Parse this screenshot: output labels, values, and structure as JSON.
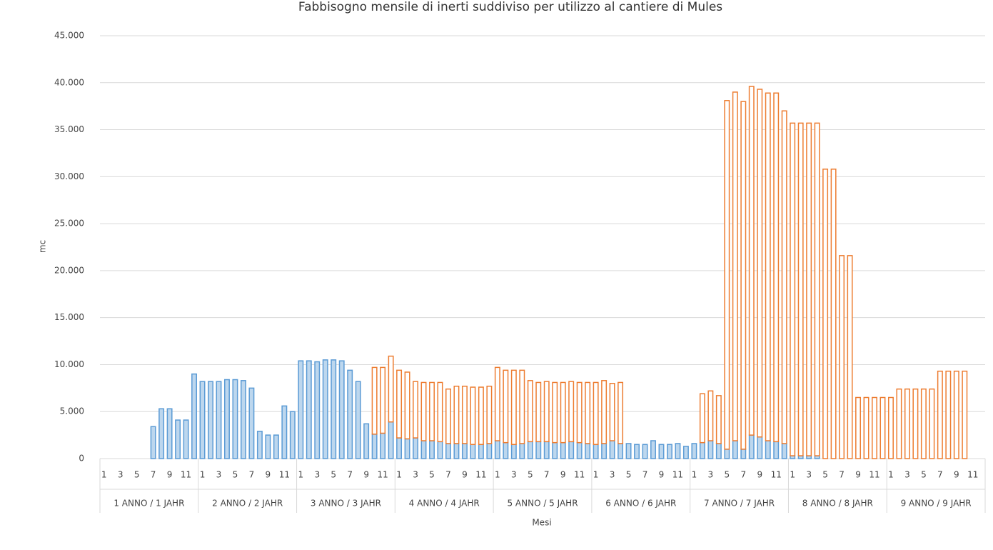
{
  "chart_data": {
    "type": "stacked_bar",
    "title": "Fabbisogno mensile di inerti suddiviso per utilizzo al cantiere di Mules",
    "ylabel": "mc",
    "xlabel": "Mesi",
    "categories": [
      "1",
      null,
      "3",
      null,
      "5",
      null,
      "7",
      null,
      "9",
      null,
      "11",
      null,
      "1",
      null,
      "3",
      null,
      "5",
      null,
      "7",
      null,
      "9",
      null,
      "11",
      null,
      "1",
      null,
      "3",
      null,
      "5",
      null,
      "7",
      null,
      "9",
      null,
      "11",
      null,
      "1",
      null,
      "3",
      null,
      "5",
      null,
      "7",
      null,
      "9",
      null,
      "11",
      null,
      "1",
      null,
      "3",
      null,
      "5",
      null,
      "7",
      null,
      "9",
      null,
      "11",
      null,
      "1",
      null,
      "3",
      null,
      "5",
      null,
      "7",
      null,
      "9",
      null,
      "11",
      null,
      "1",
      null,
      "3",
      null,
      "5",
      null,
      "7",
      null,
      "9",
      null,
      "11",
      null,
      "1",
      null,
      "3",
      null,
      "5",
      null,
      "7",
      null,
      "9",
      null,
      "11",
      null,
      "1",
      null,
      "3",
      null,
      "5",
      null,
      "7",
      null,
      "9",
      null,
      "11",
      null
    ],
    "groups": [
      "1 ANNO / 1 JAHR",
      "2 ANNO / 2 JAHR",
      "3 ANNO / 3 JAHR",
      "4 ANNO / 4 JAHR",
      "5 ANNO / 5 JAHR",
      "6 ANNO / 6 JAHR",
      "7 ANNO / 7 JAHR",
      "8 ANNO / 8 JAHR",
      "9 ANNO / 9 JAHR"
    ],
    "series": [
      {
        "color": "#5b9bd5",
        "fill": "#bdd7ee",
        "values": [
          0,
          0,
          0,
          0,
          0,
          0,
          3400,
          5300,
          5300,
          4100,
          4100,
          9000,
          8200,
          8200,
          8200,
          8400,
          8400,
          8300,
          7500,
          2900,
          2500,
          2500,
          5600,
          5000,
          10400,
          10400,
          10300,
          10500,
          10500,
          10400,
          9400,
          8200,
          3700,
          2600,
          2700,
          3900,
          2200,
          2100,
          2200,
          1900,
          1900,
          1800,
          1600,
          1600,
          1600,
          1500,
          1500,
          1600,
          1900,
          1700,
          1500,
          1600,
          1800,
          1800,
          1800,
          1700,
          1700,
          1800,
          1700,
          1600,
          1500,
          1600,
          1900,
          1600,
          1600,
          1500,
          1500,
          1900,
          1500,
          1500,
          1600,
          1300,
          1600,
          1700,
          1900,
          1600,
          1000,
          1900,
          1000,
          2500,
          2300,
          1900,
          1800,
          1600,
          300,
          300,
          300,
          300,
          0,
          0,
          0,
          0,
          0,
          0,
          0,
          0,
          0,
          0,
          0,
          0,
          0,
          0,
          0,
          0,
          0,
          0,
          0,
          0
        ]
      },
      {
        "color": "#ed7d31",
        "fill": "#ffffff",
        "values": [
          0,
          0,
          0,
          0,
          0,
          0,
          0,
          0,
          0,
          0,
          0,
          0,
          0,
          0,
          0,
          0,
          0,
          0,
          0,
          0,
          0,
          0,
          0,
          0,
          0,
          0,
          0,
          0,
          0,
          0,
          0,
          0,
          0,
          7100,
          7000,
          7000,
          7200,
          7100,
          6000,
          6200,
          6200,
          6300,
          5800,
          6100,
          6100,
          6100,
          6100,
          6100,
          7800,
          7700,
          7900,
          7800,
          6500,
          6300,
          6400,
          6400,
          6400,
          6400,
          6400,
          6500,
          6600,
          6700,
          6100,
          6500,
          0,
          0,
          0,
          0,
          0,
          0,
          0,
          0,
          0,
          5200,
          5300,
          5100,
          37100,
          37100,
          37000,
          37100,
          37000,
          37000,
          37100,
          35400,
          35400,
          35400,
          35400,
          35400,
          30800,
          30800,
          21600,
          21600,
          6500,
          6500,
          6500,
          6500,
          6500,
          7400,
          7400,
          7400,
          7400,
          7400,
          9300,
          9300,
          9300,
          9300,
          0,
          0
        ]
      }
    ],
    "ylim": [
      0,
      45000
    ],
    "yticks": [
      0,
      {
        "value": 5000,
        "label": "5.000"
      },
      {
        "value": 10000,
        "label": "10.000"
      },
      {
        "value": 15000,
        "label": "15.000"
      },
      {
        "value": 20000,
        "label": "20.000"
      },
      {
        "value": 25000,
        "label": "25.000"
      },
      {
        "value": 30000,
        "label": "30.000"
      },
      {
        "value": 35000,
        "label": "35.000"
      },
      {
        "value": 40000,
        "label": "40.000"
      },
      {
        "value": 45000,
        "label": "45.000"
      }
    ],
    "grid": true
  }
}
